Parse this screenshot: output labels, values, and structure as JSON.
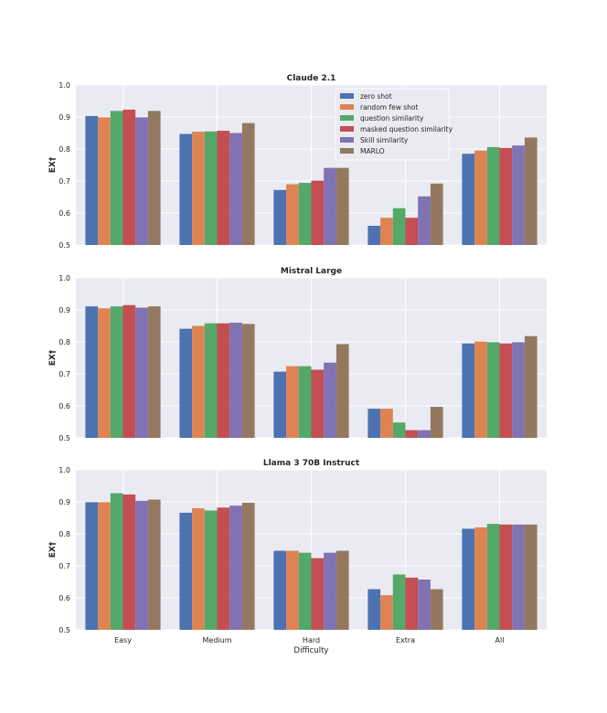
{
  "chart_data": {
    "type": "bar",
    "layout": "3 stacked panels sharing x axis",
    "categories": [
      "Easy",
      "Medium",
      "Hard",
      "Extra",
      "All"
    ],
    "xlabel": "Difficulty",
    "ylabel": "EX†",
    "ylim": [
      0.5,
      1.0
    ],
    "yticks": [
      "0.5",
      "0.6",
      "0.7",
      "0.8",
      "0.9",
      "1.0"
    ],
    "series_names": [
      "zero shot",
      "random few shot",
      "question similarity",
      "masked question similarity",
      "Skill similarity",
      "MARLO"
    ],
    "colors": [
      "#4c72b0",
      "#dd8452",
      "#55a868",
      "#c44e52",
      "#8172b3",
      "#937860"
    ],
    "legend": {
      "panel": 0,
      "placement": "top-center"
    },
    "panels": [
      {
        "title": "Claude 2.1",
        "series": [
          {
            "name": "zero shot",
            "values": [
              0.903,
              0.847,
              0.672,
              0.56,
              0.785
            ]
          },
          {
            "name": "random few shot",
            "values": [
              0.899,
              0.854,
              0.69,
              0.585,
              0.795
            ]
          },
          {
            "name": "question similarity",
            "values": [
              0.919,
              0.855,
              0.694,
              0.615,
              0.806
            ]
          },
          {
            "name": "masked question similarity",
            "values": [
              0.923,
              0.857,
              0.701,
              0.585,
              0.803
            ]
          },
          {
            "name": "Skill similarity",
            "values": [
              0.899,
              0.85,
              0.741,
              0.652,
              0.811
            ]
          },
          {
            "name": "MARLO",
            "values": [
              0.919,
              0.881,
              0.741,
              0.692,
              0.836
            ]
          }
        ]
      },
      {
        "title": "Mistral Large",
        "series": [
          {
            "name": "zero shot",
            "values": [
              0.911,
              0.841,
              0.707,
              0.591,
              0.795
            ]
          },
          {
            "name": "random few shot",
            "values": [
              0.905,
              0.85,
              0.724,
              0.591,
              0.801
            ]
          },
          {
            "name": "question similarity",
            "values": [
              0.911,
              0.858,
              0.724,
              0.548,
              0.799
            ]
          },
          {
            "name": "masked question similarity",
            "values": [
              0.915,
              0.858,
              0.713,
              0.524,
              0.795
            ]
          },
          {
            "name": "Skill similarity",
            "values": [
              0.907,
              0.86,
              0.735,
              0.524,
              0.799
            ]
          },
          {
            "name": "MARLO",
            "values": [
              0.911,
              0.856,
              0.793,
              0.597,
              0.818
            ]
          }
        ]
      },
      {
        "title": "Llama 3 70B Instruct",
        "series": [
          {
            "name": "zero shot",
            "values": [
              0.899,
              0.866,
              0.747,
              0.627,
              0.816
            ]
          },
          {
            "name": "random few shot",
            "values": [
              0.899,
              0.88,
              0.747,
              0.608,
              0.82
            ]
          },
          {
            "name": "question similarity",
            "values": [
              0.927,
              0.873,
              0.741,
              0.673,
              0.831
            ]
          },
          {
            "name": "masked question similarity",
            "values": [
              0.923,
              0.882,
              0.724,
              0.663,
              0.829
            ]
          },
          {
            "name": "Skill similarity",
            "values": [
              0.903,
              0.888,
              0.741,
              0.657,
              0.829
            ]
          },
          {
            "name": "MARLO",
            "values": [
              0.907,
              0.897,
              0.747,
              0.627,
              0.829
            ]
          }
        ]
      }
    ]
  }
}
